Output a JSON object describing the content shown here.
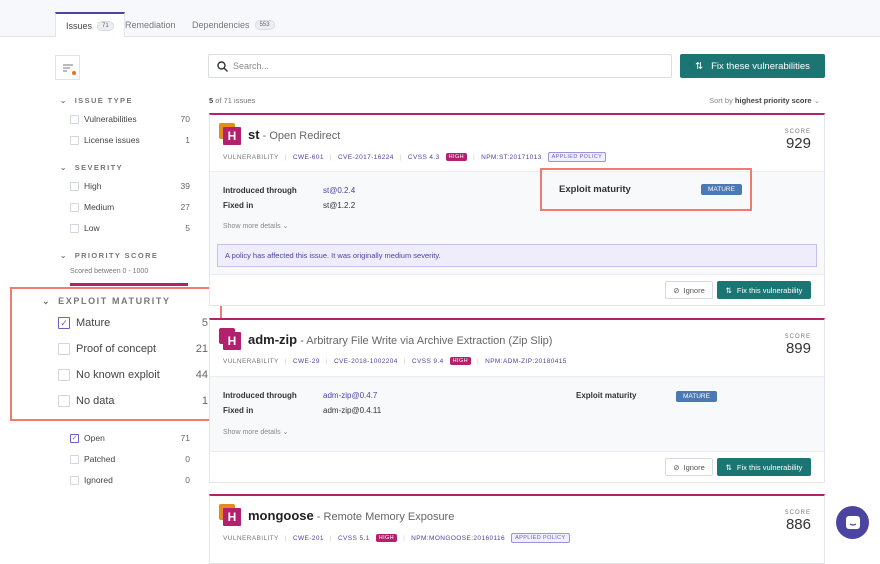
{
  "tabs": [
    {
      "label": "Issues",
      "count": "71",
      "active": true
    },
    {
      "label": "Remediation"
    },
    {
      "label": "Dependencies",
      "count": "553"
    }
  ],
  "sidebar": {
    "issue_type": {
      "title": "ISSUE TYPE",
      "items": [
        {
          "label": "Vulnerabilities",
          "count": "70",
          "checked": false
        },
        {
          "label": "License issues",
          "count": "1",
          "checked": false
        }
      ]
    },
    "severity": {
      "title": "SEVERITY",
      "items": [
        {
          "label": "High",
          "count": "39"
        },
        {
          "label": "Medium",
          "count": "27"
        },
        {
          "label": "Low",
          "count": "5"
        }
      ]
    },
    "priority": {
      "title": "PRIORITY SCORE",
      "subtitle": "Scored between 0 - 1000"
    },
    "exploit": {
      "title": "EXPLOIT MATURITY",
      "items": [
        {
          "label": "Mature",
          "count": "5",
          "checked": true
        },
        {
          "label": "Proof of concept",
          "count": "21"
        },
        {
          "label": "No known exploit",
          "count": "44"
        },
        {
          "label": "No data",
          "count": "1"
        }
      ]
    },
    "status": {
      "items": [
        {
          "label": "Open",
          "count": "71",
          "checked": true
        },
        {
          "label": "Patched",
          "count": "0"
        },
        {
          "label": "Ignored",
          "count": "0"
        }
      ]
    }
  },
  "search": {
    "placeholder": "Search..."
  },
  "fix_all": "Fix these vulnerabilities",
  "results": {
    "shown": "5",
    "text": "of 71 issues"
  },
  "sort": {
    "prefix": "Sort by",
    "value": "highest priority score"
  },
  "labels": {
    "score": "SCORE",
    "vuln": "VULNERABILITY",
    "introduced": "Introduced through",
    "fixed": "Fixed in",
    "more": "Show more details",
    "exploit": "Exploit maturity",
    "ignore": "Ignore",
    "fix": "Fix this vulnerability",
    "high": "HIGH",
    "policy_badge": "APPLIED POLICY",
    "sev_letter": "H"
  },
  "cards": [
    {
      "pkg": "st",
      "title": "- Open Redirect",
      "cwe": "CWE-601",
      "cve": "CVE-2017-16224",
      "cvss": "CVSS 4.3",
      "npm": "NPM:ST:20171013",
      "score": "929",
      "introduced": "st@0.2.4",
      "fixed": "st@1.2.2",
      "maturity": "MATURE",
      "policy": "A policy has affected this issue. It was originally medium severity."
    },
    {
      "pkg": "adm-zip",
      "title": "- Arbitrary File Write via Archive Extraction (Zip Slip)",
      "cwe": "CWE-29",
      "cve": "CVE-2018-1002204",
      "cvss": "CVSS 9.4",
      "npm": "NPM:ADM-ZIP:20180415",
      "score": "899",
      "introduced": "adm-zip@0.4.7",
      "fixed": "adm-zip@0.4.11",
      "maturity": "MATURE"
    },
    {
      "pkg": "mongoose",
      "title": "- Remote Memory Exposure",
      "cwe": "CWE-201",
      "cvss": "CVSS 5.1",
      "npm": "NPM:MONGOOSE:20160116",
      "score": "886"
    }
  ],
  "colors": {
    "accent": "#4b45a1",
    "primary_button": "#1b7573",
    "high": "#b3216e",
    "highlight": "#f07b6e",
    "mature": "#4a79b3"
  }
}
